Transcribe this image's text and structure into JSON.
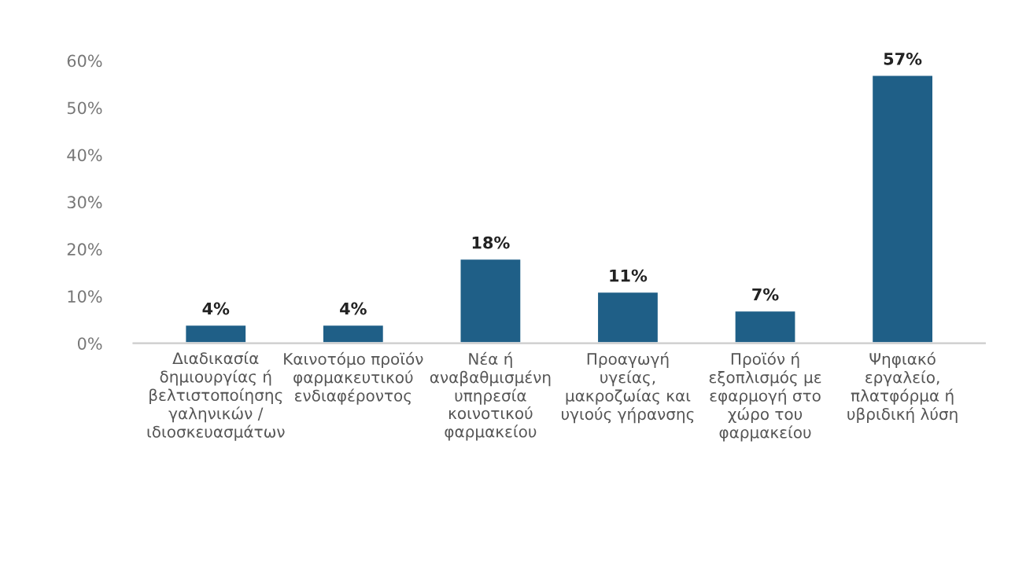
{
  "chart_data": {
    "type": "bar",
    "categories": [
      "Διαδικασία\nδημιουργίας ή\nβελτιστοποίησης\nγαληνικών /\nιδιοσκευασμάτων",
      "Καινοτόμο προϊόν\nφαρμακευτικού\nενδιαφέροντος",
      "Νέα ή\nαναβαθμισμένη\nυπηρεσία\nκοινοτικού\nφαρμακείου",
      "Προαγωγή\nυγείας,\nμακροζωίας και\nυγιούς γήρανσης",
      "Προϊόν ή\nεξοπλισμός με\nεφαρμογή στο\nχώρο του\nφαρμακείου",
      "Ψηφιακό\nεργαλείο,\nπλατφόρμα ή\nυβριδική λύση"
    ],
    "values": [
      4,
      4,
      18,
      11,
      7,
      57
    ],
    "value_labels": [
      "4%",
      "4%",
      "18%",
      "11%",
      "7%",
      "57%"
    ],
    "color": "#1f5f87",
    "ylim": [
      0,
      60
    ],
    "yticks": [
      {
        "value": 0,
        "label": "0%"
      },
      {
        "value": 10,
        "label": "10%"
      },
      {
        "value": 20,
        "label": "20%"
      },
      {
        "value": 30,
        "label": "30%"
      },
      {
        "value": 40,
        "label": "40%"
      },
      {
        "value": 50,
        "label": "50%"
      },
      {
        "value": 60,
        "label": "60%"
      }
    ],
    "grid": false
  }
}
